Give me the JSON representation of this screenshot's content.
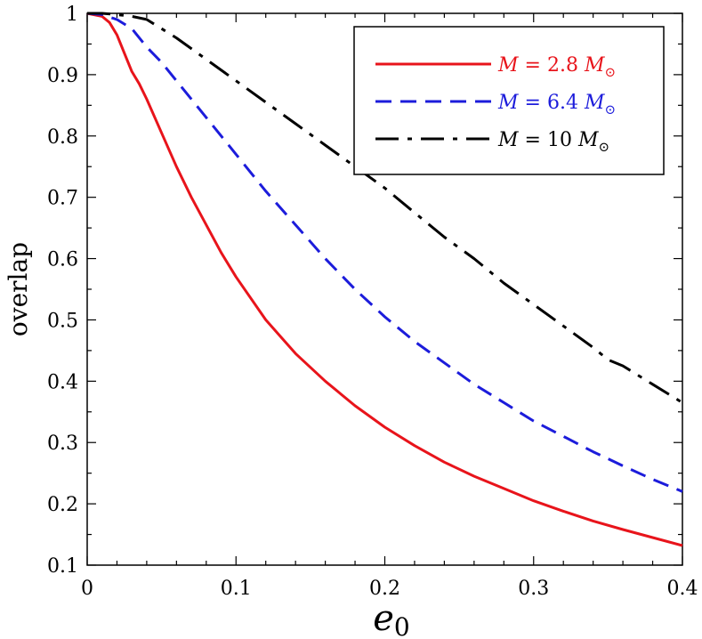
{
  "chart_data": {
    "type": "line",
    "title": "",
    "xlabel": "e",
    "xlabel_sub": "0",
    "ylabel": "overlap",
    "xlim": [
      0,
      0.4
    ],
    "ylim": [
      0.1,
      1.0
    ],
    "x_ticks": [
      0,
      0.1,
      0.2,
      0.3,
      0.4
    ],
    "x_tick_labels": [
      "0",
      "0.1",
      "0.2",
      "0.3",
      "0.4"
    ],
    "y_ticks": [
      0.1,
      0.2,
      0.3,
      0.4,
      0.5,
      0.6,
      0.7,
      0.8,
      0.9,
      1.0
    ],
    "y_tick_labels": [
      "0.1",
      "0.2",
      "0.3",
      "0.4",
      "0.5",
      "0.6",
      "0.7",
      "0.8",
      "0.9",
      "1"
    ],
    "grid": false,
    "legend_position": "top-right",
    "series": [
      {
        "name": "M = 2.8 M",
        "name_parts": {
          "var": "M",
          "eq": " = 2.8 ",
          "unit": "M",
          "sub": "⊙"
        },
        "color": "#e8141b",
        "dash": "solid",
        "x": [
          0,
          0.01,
          0.015,
          0.02,
          0.025,
          0.03,
          0.035,
          0.04,
          0.05,
          0.06,
          0.07,
          0.08,
          0.09,
          0.1,
          0.12,
          0.14,
          0.16,
          0.18,
          0.2,
          0.22,
          0.24,
          0.26,
          0.28,
          0.3,
          0.32,
          0.34,
          0.36,
          0.38,
          0.4
        ],
        "y": [
          1.0,
          0.995,
          0.985,
          0.965,
          0.935,
          0.905,
          0.885,
          0.86,
          0.805,
          0.75,
          0.7,
          0.655,
          0.61,
          0.57,
          0.5,
          0.445,
          0.4,
          0.36,
          0.325,
          0.295,
          0.268,
          0.245,
          0.225,
          0.205,
          0.188,
          0.172,
          0.158,
          0.145,
          0.132
        ]
      },
      {
        "name": "M = 6.4 M",
        "name_parts": {
          "var": "M",
          "eq": " = 6.4 ",
          "unit": "M",
          "sub": "⊙"
        },
        "color": "#1c1cdb",
        "dash": "dashed",
        "x": [
          0,
          0.01,
          0.02,
          0.03,
          0.04,
          0.05,
          0.06,
          0.07,
          0.08,
          0.1,
          0.12,
          0.14,
          0.16,
          0.18,
          0.2,
          0.22,
          0.24,
          0.26,
          0.28,
          0.3,
          0.32,
          0.34,
          0.36,
          0.38,
          0.4
        ],
        "y": [
          1.0,
          0.998,
          0.99,
          0.975,
          0.945,
          0.92,
          0.89,
          0.86,
          0.83,
          0.77,
          0.71,
          0.655,
          0.6,
          0.55,
          0.505,
          0.465,
          0.43,
          0.395,
          0.365,
          0.335,
          0.31,
          0.285,
          0.262,
          0.24,
          0.22
        ]
      },
      {
        "name": "M = 10 M",
        "name_parts": {
          "var": "M",
          "eq": " = 10 ",
          "unit": "M",
          "sub": "⊙"
        },
        "color": "#000000",
        "dash": "dashdot",
        "x": [
          0,
          0.01,
          0.02,
          0.03,
          0.04,
          0.05,
          0.06,
          0.08,
          0.1,
          0.12,
          0.14,
          0.16,
          0.18,
          0.2,
          0.22,
          0.24,
          0.26,
          0.28,
          0.3,
          0.32,
          0.34,
          0.35,
          0.36,
          0.38,
          0.4
        ],
        "y": [
          1.0,
          1.0,
          0.998,
          0.995,
          0.99,
          0.975,
          0.96,
          0.925,
          0.89,
          0.855,
          0.82,
          0.785,
          0.75,
          0.715,
          0.675,
          0.635,
          0.6,
          0.56,
          0.525,
          0.49,
          0.455,
          0.435,
          0.425,
          0.395,
          0.365
        ]
      }
    ]
  }
}
